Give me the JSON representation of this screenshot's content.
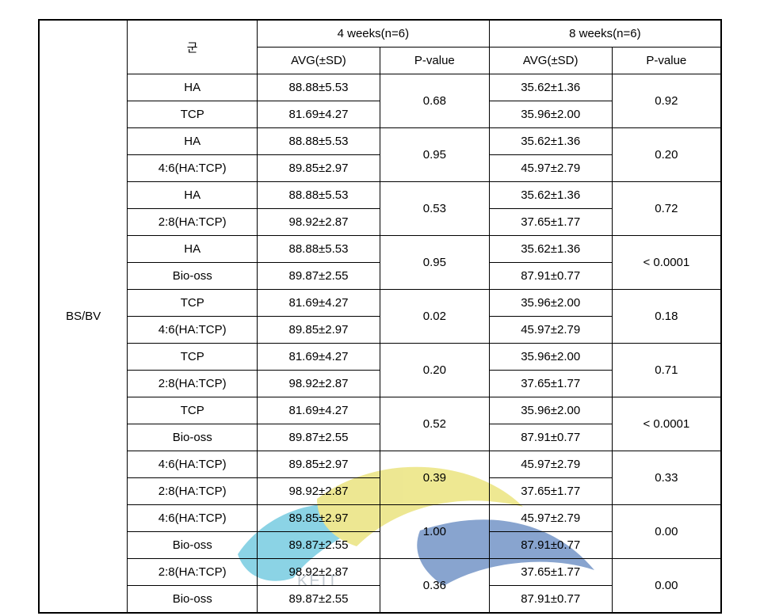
{
  "table": {
    "row_header_label": "BS/BV",
    "group_header": "군",
    "period_4w_header": "4 weeks(n=6)",
    "period_8w_header": "8 weeks(n=6)",
    "avg_header": "AVG(±SD)",
    "pvalue_header": "P-value",
    "pairs": [
      {
        "g1": "HA",
        "a1_4": "88.88±5.53",
        "g2": "TCP",
        "a2_4": "81.69±4.27",
        "p4": "0.68",
        "a1_8": "35.62±1.36",
        "a2_8": "35.96±2.00",
        "p8": "0.92"
      },
      {
        "g1": "HA",
        "a1_4": "88.88±5.53",
        "g2": "4:6(HA:TCP)",
        "a2_4": "89.85±2.97",
        "p4": "0.95",
        "a1_8": "35.62±1.36",
        "a2_8": "45.97±2.79",
        "p8": "0.20"
      },
      {
        "g1": "HA",
        "a1_4": "88.88±5.53",
        "g2": "2:8(HA:TCP)",
        "a2_4": "98.92±2.87",
        "p4": "0.53",
        "a1_8": "35.62±1.36",
        "a2_8": "37.65±1.77",
        "p8": "0.72"
      },
      {
        "g1": "HA",
        "a1_4": "88.88±5.53",
        "g2": "Bio-oss",
        "a2_4": "89.87±2.55",
        "p4": "0.95",
        "a1_8": "35.62±1.36",
        "a2_8": "87.91±0.77",
        "p8": "< 0.0001"
      },
      {
        "g1": "TCP",
        "a1_4": "81.69±4.27",
        "g2": "4:6(HA:TCP)",
        "a2_4": "89.85±2.97",
        "p4": "0.02",
        "a1_8": "35.96±2.00",
        "a2_8": "45.97±2.79",
        "p8": "0.18"
      },
      {
        "g1": "TCP",
        "a1_4": "81.69±4.27",
        "g2": "2:8(HA:TCP)",
        "a2_4": "98.92±2.87",
        "p4": "0.20",
        "a1_8": "35.96±2.00",
        "a2_8": "37.65±1.77",
        "p8": "0.71"
      },
      {
        "g1": "TCP",
        "a1_4": "81.69±4.27",
        "g2": "Bio-oss",
        "a2_4": "89.87±2.55",
        "p4": "0.52",
        "a1_8": "35.96±2.00",
        "a2_8": "87.91±0.77",
        "p8": "< 0.0001"
      },
      {
        "g1": "4:6(HA:TCP)",
        "a1_4": "89.85±2.97",
        "g2": "2:8(HA:TCP)",
        "a2_4": "98.92±2.87",
        "p4": "0.39",
        "a1_8": "45.97±2.79",
        "a2_8": "37.65±1.77",
        "p8": "0.33"
      },
      {
        "g1": "4:6(HA:TCP)",
        "a1_4": "89.85±2.97",
        "g2": "Bio-oss",
        "a2_4": "89.87±2.55",
        "p4": "1.00",
        "a1_8": "45.97±2.79",
        "a2_8": "87.91±0.77",
        "p8": "0.00"
      },
      {
        "g1": "2:8(HA:TCP)",
        "a1_4": "98.92±2.87",
        "g2": "Bio-oss",
        "a2_4": "89.87±2.55",
        "p4": "0.36",
        "a1_8": "37.65±1.77",
        "a2_8": "87.91±0.77",
        "p8": "0.00"
      }
    ]
  },
  "watermark": {
    "colors": {
      "cyan": "#3fb7d4",
      "yellow": "#e2d84a",
      "blue": "#3a69b0",
      "text": "#9aa7b3"
    },
    "opacity": 0.6
  }
}
